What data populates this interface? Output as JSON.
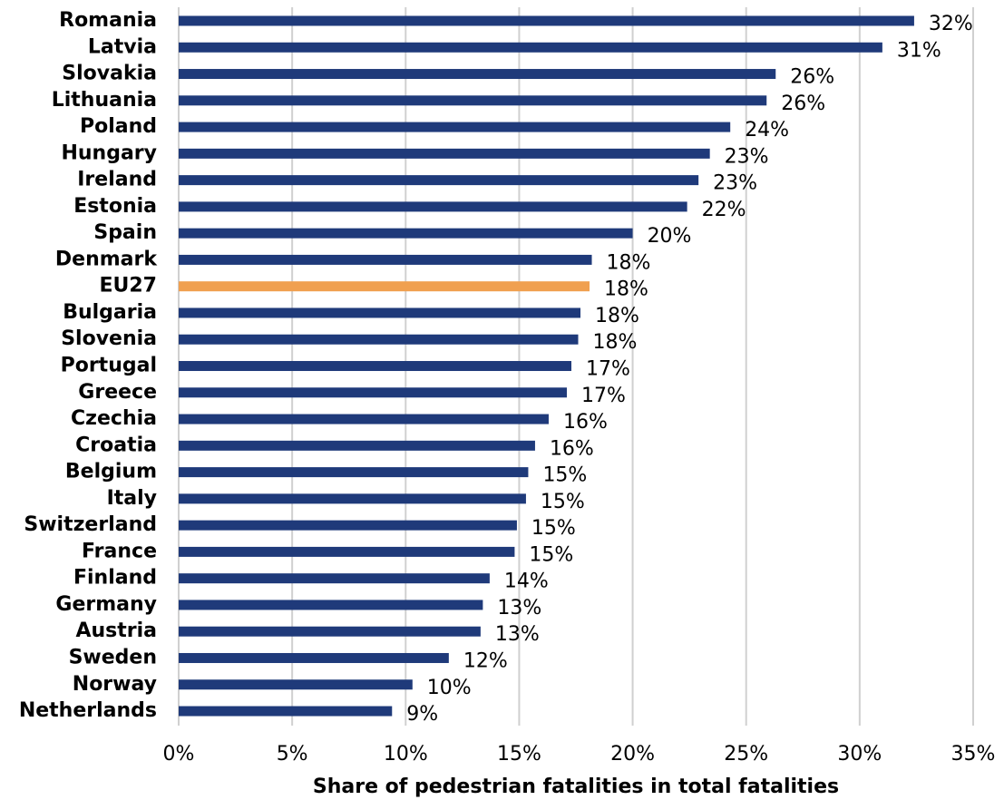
{
  "chart_data": {
    "type": "hbar",
    "x_label": "Share of pedestrian fatalities in total fatalities",
    "categories": [
      "Romania",
      "Latvia",
      "Slovakia",
      "Lithuania",
      "Poland",
      "Hungary",
      "Ireland",
      "Estonia",
      "Spain",
      "Denmark",
      "EU27",
      "Bulgaria",
      "Slovenia",
      "Portugal",
      "Greece",
      "Czechia",
      "Croatia",
      "Belgium",
      "Italy",
      "Switzerland",
      "France",
      "Finland",
      "Germany",
      "Austria",
      "Sweden",
      "Norway",
      "Netherlands"
    ],
    "values": [
      32.4,
      31.0,
      26.3,
      25.9,
      24.3,
      23.4,
      22.9,
      22.4,
      20.0,
      18.2,
      18.1,
      17.7,
      17.6,
      17.3,
      17.1,
      16.3,
      15.7,
      15.4,
      15.3,
      14.9,
      14.8,
      13.7,
      13.4,
      13.3,
      11.9,
      10.3,
      9.4
    ],
    "value_labels": [
      "32%",
      "31%",
      "26%",
      "26%",
      "24%",
      "23%",
      "23%",
      "22%",
      "20%",
      "18%",
      "18%",
      "18%",
      "18%",
      "17%",
      "17%",
      "16%",
      "16%",
      "15%",
      "15%",
      "15%",
      "15%",
      "14%",
      "13%",
      "13%",
      "12%",
      "10%",
      "9%"
    ],
    "colors": [
      "#1f3a7a",
      "#1f3a7a",
      "#1f3a7a",
      "#1f3a7a",
      "#1f3a7a",
      "#1f3a7a",
      "#1f3a7a",
      "#1f3a7a",
      "#1f3a7a",
      "#1f3a7a",
      "#f0a050",
      "#1f3a7a",
      "#1f3a7a",
      "#1f3a7a",
      "#1f3a7a",
      "#1f3a7a",
      "#1f3a7a",
      "#1f3a7a",
      "#1f3a7a",
      "#1f3a7a",
      "#1f3a7a",
      "#1f3a7a",
      "#1f3a7a",
      "#1f3a7a",
      "#1f3a7a",
      "#1f3a7a",
      "#1f3a7a"
    ],
    "xlim": [
      0,
      35
    ],
    "xticks": [
      {
        "value": 0,
        "label": "0%"
      },
      {
        "value": 5,
        "label": "5%"
      },
      {
        "value": 10,
        "label": "10%"
      },
      {
        "value": 15,
        "label": "15%"
      },
      {
        "value": 20,
        "label": "20%"
      },
      {
        "value": 25,
        "label": "25%"
      },
      {
        "value": 30,
        "label": "30%"
      },
      {
        "value": 35,
        "label": "35%"
      }
    ],
    "grid": true
  }
}
